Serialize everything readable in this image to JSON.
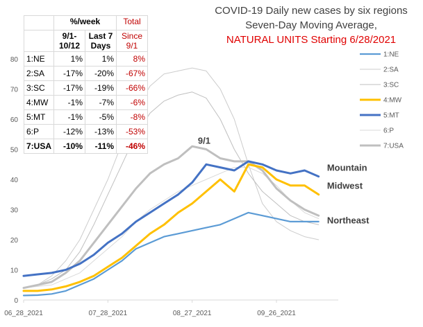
{
  "chart_data": {
    "type": "line",
    "title_lines": [
      "COVID-19 Daily new cases by six regions",
      "Seven-Day Moving Average,"
    ],
    "title_red": "NATURAL UNITS Starting 6/28/2021",
    "y_ticks": [
      "0",
      "10",
      "20",
      "30",
      "40",
      "50",
      "60",
      "70",
      "80"
    ],
    "ylim": [
      0,
      80
    ],
    "x_tick_labels": [
      "06_28_2021",
      "07_28_2021",
      "08_27_2021",
      "09_26_2021"
    ],
    "x_tick_days": [
      0,
      30,
      60,
      90
    ],
    "x_days": [
      0,
      5,
      10,
      15,
      20,
      25,
      30,
      35,
      40,
      45,
      50,
      55,
      60,
      65,
      70,
      75,
      80,
      85,
      90,
      95,
      100,
      105
    ],
    "series": [
      {
        "name": "1:NE",
        "color": "#5b9bd5",
        "width": 2.2,
        "values": [
          1.5,
          1.6,
          2,
          3,
          5,
          7,
          10,
          13,
          17,
          19,
          21,
          22,
          23,
          24,
          25,
          27,
          29,
          28,
          27,
          26,
          26,
          26
        ]
      },
      {
        "name": "2:SA",
        "color": "#cccccc",
        "width": 1,
        "values": [
          4,
          5,
          8,
          13,
          20,
          30,
          40,
          52,
          63,
          71,
          75,
          76,
          77,
          76,
          70,
          60,
          45,
          32,
          26,
          23,
          21,
          20
        ]
      },
      {
        "name": "3:SC",
        "color": "#bfbfbf",
        "width": 1,
        "values": [
          4,
          5,
          7,
          10,
          16,
          25,
          35,
          45,
          55,
          62,
          66,
          68,
          69,
          67,
          60,
          50,
          42,
          36,
          32,
          28,
          26,
          25
        ]
      },
      {
        "name": "4:MW",
        "color": "#ffc000",
        "width": 3,
        "values": [
          3,
          3,
          3.5,
          4.5,
          6,
          8,
          11,
          14,
          18,
          22,
          25,
          29,
          32,
          36,
          40,
          36,
          45,
          44,
          40,
          38,
          38,
          35
        ]
      },
      {
        "name": "5:MT",
        "color": "#4472c4",
        "width": 3,
        "values": [
          8,
          8.5,
          9,
          10,
          12,
          15,
          19,
          22,
          26,
          29,
          32,
          35,
          39,
          45,
          44,
          43,
          46,
          45,
          43,
          42,
          43,
          41
        ]
      },
      {
        "name": "6:P",
        "color": "#d9d9d9",
        "width": 1,
        "values": [
          4,
          4.5,
          5,
          7,
          9,
          13,
          17,
          21,
          26,
          30,
          33,
          36,
          38,
          40,
          42,
          44,
          44,
          42,
          38,
          33,
          29,
          27
        ]
      },
      {
        "name": "7:USA",
        "color": "#bfbfbf",
        "width": 3,
        "values": [
          4,
          5,
          6,
          9,
          13,
          19,
          25,
          31,
          37,
          42,
          45,
          47,
          51,
          50,
          47,
          46,
          46,
          43,
          37,
          33,
          30,
          28
        ]
      }
    ],
    "annotations": [
      {
        "text": "9/1",
        "day": 65,
        "y": 53
      },
      {
        "text": "Mountain",
        "day": 108,
        "y": 44
      },
      {
        "text": "Midwest",
        "day": 108,
        "y": 38
      },
      {
        "text": "Northeast",
        "day": 108,
        "y": 26.5
      }
    ],
    "legend_placement": "right"
  },
  "table": {
    "header": {
      "col1": "%/week",
      "col1a": "9/1-",
      "col1b": "10/12",
      "col2a": "Last 7",
      "col2b": "Days",
      "col3a": "Total",
      "col3b": "Since",
      "col3c": "9/1"
    },
    "rows": [
      {
        "region": "1:NE",
        "since91": "1%",
        "last7": "1%",
        "total": "8%",
        "bold": false
      },
      {
        "region": "2:SA",
        "since91": "-17%",
        "last7": "-20%",
        "total": "-67%",
        "bold": false
      },
      {
        "region": "3:SC",
        "since91": "-17%",
        "last7": "-19%",
        "total": "-66%",
        "bold": false
      },
      {
        "region": "4:MW",
        "since91": "-1%",
        "last7": "-7%",
        "total": "-6%",
        "bold": false
      },
      {
        "region": "5:MT",
        "since91": "-1%",
        "last7": "-5%",
        "total": "-8%",
        "bold": false
      },
      {
        "region": "6:P",
        "since91": "-12%",
        "last7": "-13%",
        "total": "-53%",
        "bold": false
      },
      {
        "region": "7:USA",
        "since91": "-10%",
        "last7": "-11%",
        "total": "-46%",
        "bold": true
      }
    ]
  }
}
